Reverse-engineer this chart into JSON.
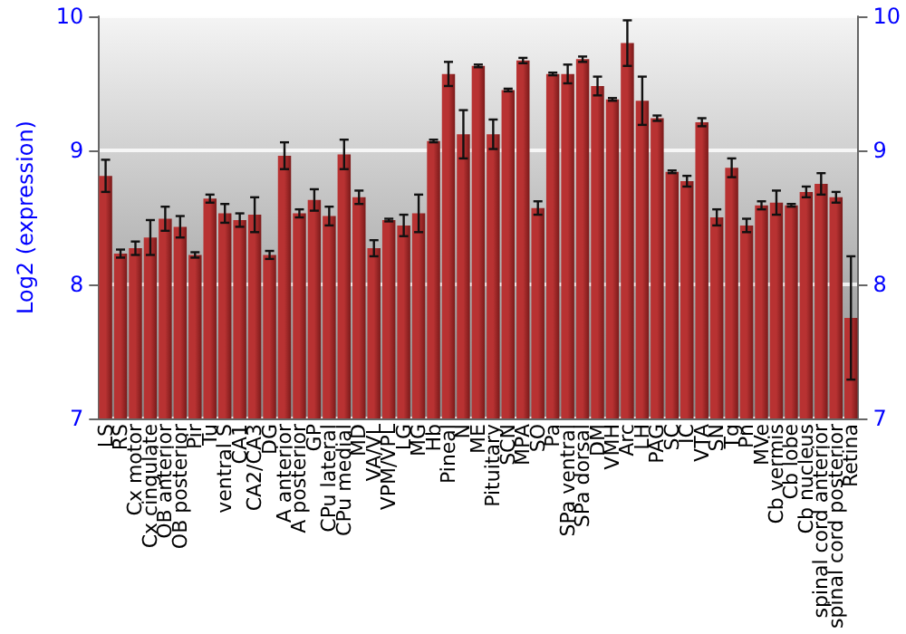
{
  "chart_data": {
    "type": "bar",
    "ylabel": "Log2 (expression)",
    "categories": [
      "LS",
      "RS",
      "Cx motor",
      "Cx cingulate",
      "OB anterior",
      "OB posterior",
      "Pir",
      "Tu",
      "ventral S",
      "CA1",
      "CA2/CA3",
      "DG",
      "A anterior",
      "A posterior",
      "GP",
      "CPu lateral",
      "CPu medial",
      "MD",
      "VA/VL",
      "VPM/VPL",
      "LG",
      "MG",
      "Hb",
      "Pineal",
      "N",
      "ME",
      "Pituitary",
      "SCN",
      "MPA",
      "SO",
      "Pa",
      "SPa ventral",
      "SPa dorsal",
      "DM",
      "VMH",
      "Arc",
      "LH",
      "PAG",
      "SC",
      "IC",
      "VTA",
      "SN",
      "Tg",
      "Pn",
      "MVe",
      "Cb vermis",
      "Cb lobe",
      "Cb nucleus",
      "spinal cord anterior",
      "spinal cord posterior",
      "Retina"
    ],
    "values": [
      8.81,
      8.23,
      8.27,
      8.35,
      8.49,
      8.43,
      8.22,
      8.64,
      8.53,
      8.48,
      8.52,
      8.22,
      8.96,
      8.53,
      8.63,
      8.51,
      8.97,
      8.65,
      8.27,
      8.48,
      8.44,
      8.53,
      9.07,
      9.57,
      9.12,
      9.63,
      9.12,
      9.45,
      9.67,
      8.57,
      9.57,
      9.57,
      9.68,
      9.48,
      9.38,
      9.8,
      9.37,
      9.24,
      8.84,
      8.77,
      9.21,
      8.5,
      8.87,
      8.44,
      8.59,
      8.61,
      8.59,
      8.69,
      8.75,
      8.65,
      7.75
    ],
    "errors": [
      0.12,
      0.03,
      0.05,
      0.13,
      0.09,
      0.08,
      0.02,
      0.03,
      0.07,
      0.05,
      0.13,
      0.03,
      0.1,
      0.03,
      0.08,
      0.07,
      0.11,
      0.05,
      0.06,
      0.01,
      0.08,
      0.14,
      0.01,
      0.09,
      0.18,
      0.01,
      0.11,
      0.01,
      0.02,
      0.05,
      0.01,
      0.07,
      0.02,
      0.07,
      0.01,
      0.17,
      0.18,
      0.02,
      0.01,
      0.04,
      0.03,
      0.06,
      0.07,
      0.05,
      0.03,
      0.09,
      0.01,
      0.04,
      0.08,
      0.04,
      0.46
    ],
    "color": "#b83232",
    "ylim": [
      7,
      10
    ],
    "yticks": [
      7,
      8,
      9,
      10
    ],
    "y2lim": [
      7,
      10
    ],
    "y2ticks": [
      7,
      8,
      9,
      10
    ],
    "grid": "y"
  }
}
